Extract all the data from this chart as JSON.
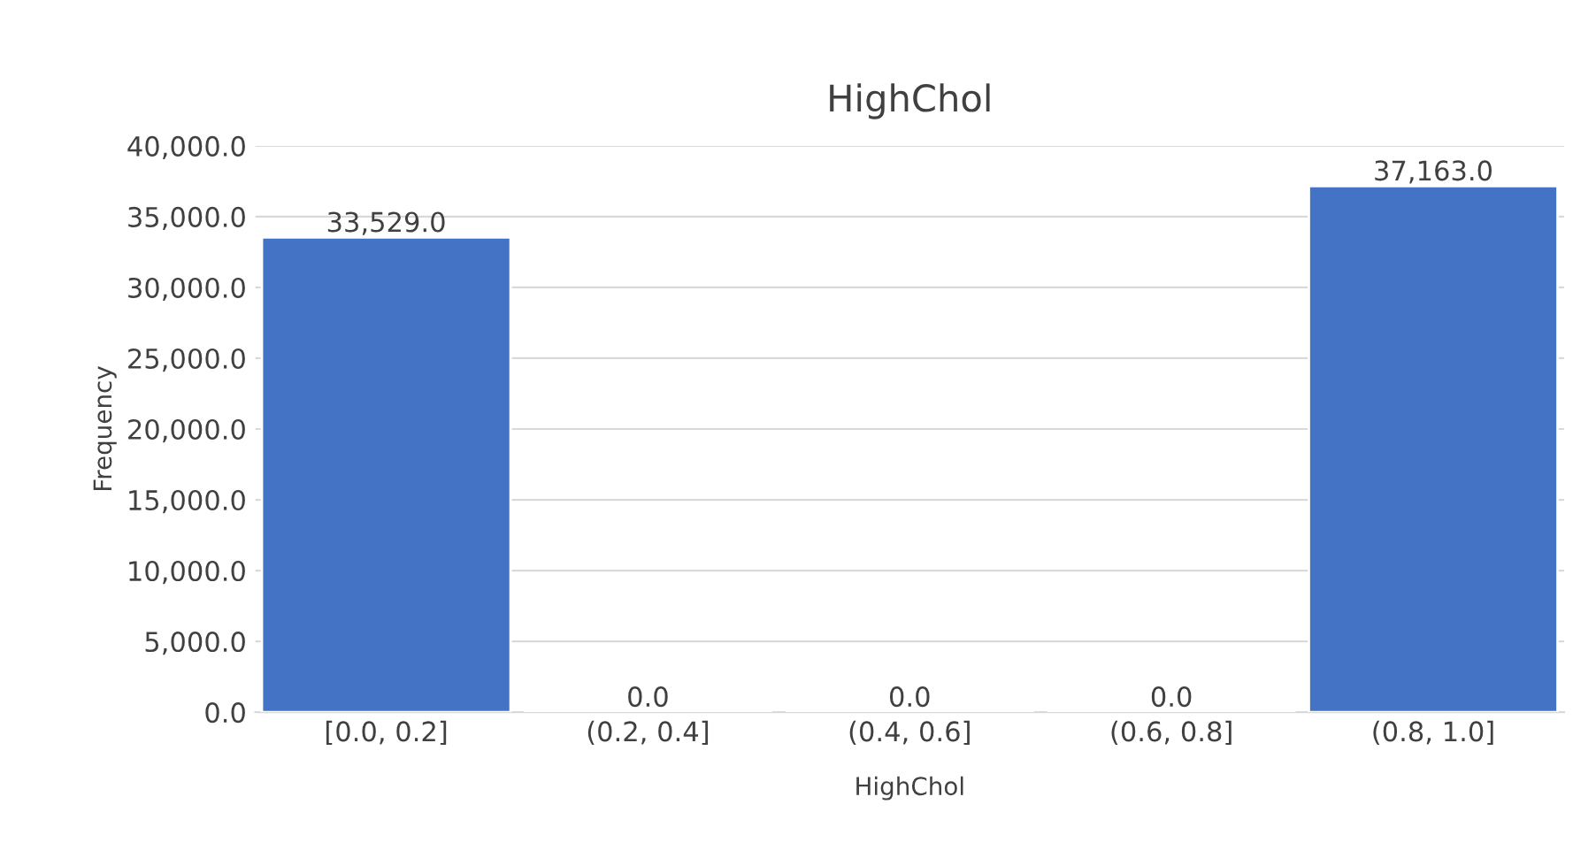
{
  "chart_data": {
    "type": "bar",
    "title": "HighChol",
    "xlabel": "HighChol",
    "ylabel": "Frequency",
    "categories": [
      "[0.0, 0.2]",
      "(0.2, 0.4]",
      "(0.4, 0.6]",
      "(0.6, 0.8]",
      "(0.8, 1.0]"
    ],
    "values": [
      33529,
      0,
      0,
      0,
      37163
    ],
    "value_labels": [
      "33,529.0",
      "0.0",
      "0.0",
      "0.0",
      "37,163.0"
    ],
    "color": "#4472c4",
    "ylim": [
      0,
      40000
    ],
    "yticks": [
      {
        "value": 0,
        "label": "0.0"
      },
      {
        "value": 5000,
        "label": "5,000.0"
      },
      {
        "value": 10000,
        "label": "10,000.0"
      },
      {
        "value": 15000,
        "label": "15,000.0"
      },
      {
        "value": 20000,
        "label": "20,000.0"
      },
      {
        "value": 25000,
        "label": "25,000.0"
      },
      {
        "value": 30000,
        "label": "30,000.0"
      },
      {
        "value": 35000,
        "label": "35,000.0"
      },
      {
        "value": 40000,
        "label": "40,000.0"
      }
    ],
    "grid": "y"
  }
}
